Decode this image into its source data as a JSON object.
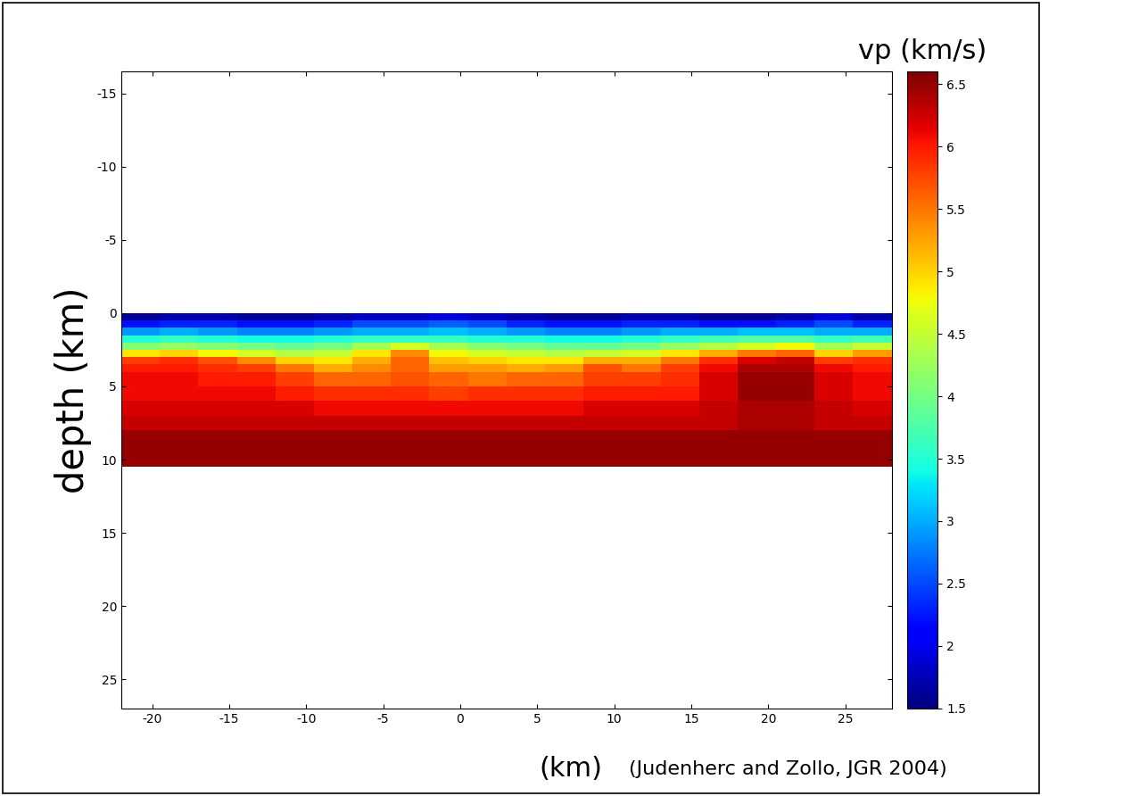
{
  "chart_data": {
    "type": "heatmap",
    "colorbar_label": "vp (km/s)",
    "x_label": "(km)",
    "y_label": "depth (km)",
    "source": "(Judenherc and Zollo, JGR 2004)",
    "xlim": [
      -22,
      28
    ],
    "ylim": [
      27,
      -16.5
    ],
    "xticks": [
      -20,
      -15,
      -10,
      -5,
      0,
      5,
      10,
      15,
      20,
      25
    ],
    "yticks": [
      -15,
      -10,
      -5,
      0,
      5,
      10,
      15,
      20,
      25
    ],
    "x_edges": [
      -22,
      -19.5,
      -17,
      -14.5,
      -12,
      -9.5,
      -7,
      -4.5,
      -2,
      0.5,
      3,
      5.5,
      8,
      10.5,
      13,
      15.5,
      18,
      20.5,
      23,
      25.5,
      28
    ],
    "y_edges": [
      0,
      0.5,
      1,
      1.5,
      2,
      2.5,
      3,
      3.5,
      4,
      5,
      6,
      7,
      8,
      9,
      10.5
    ],
    "cells": [
      [
        1.6,
        1.7,
        1.7,
        1.6,
        1.6,
        1.7,
        1.8,
        1.8,
        1.9,
        1.8,
        1.7,
        1.6,
        1.6,
        1.7,
        1.7,
        1.6,
        1.6,
        1.7,
        1.9,
        1.7
      ],
      [
        2.2,
        2.3,
        2.3,
        2.2,
        2.2,
        2.3,
        2.5,
        2.5,
        2.6,
        2.5,
        2.3,
        2.2,
        2.2,
        2.3,
        2.3,
        2.2,
        2.2,
        2.3,
        2.5,
        2.3
      ],
      [
        2.9,
        3.0,
        2.9,
        2.8,
        2.8,
        2.9,
        3.0,
        3.0,
        3.1,
        3.0,
        2.9,
        2.8,
        2.8,
        2.9,
        3.0,
        3.0,
        3.1,
        3.1,
        3.0,
        3.0
      ],
      [
        3.5,
        3.6,
        3.5,
        3.4,
        3.4,
        3.5,
        3.6,
        3.6,
        3.6,
        3.5,
        3.5,
        3.4,
        3.4,
        3.5,
        3.6,
        3.7,
        3.8,
        3.8,
        3.6,
        3.7
      ],
      [
        4.1,
        4.2,
        4.1,
        4.0,
        3.9,
        4.0,
        4.3,
        4.6,
        4.3,
        4.1,
        4.0,
        3.9,
        3.9,
        4.0,
        4.2,
        4.4,
        4.6,
        4.8,
        4.3,
        4.5
      ],
      [
        4.9,
        5.0,
        4.8,
        4.6,
        4.4,
        4.5,
        4.9,
        5.4,
        4.8,
        4.6,
        4.5,
        4.4,
        4.5,
        4.6,
        4.9,
        5.2,
        5.5,
        5.6,
        5.0,
        5.3
      ],
      [
        5.8,
        5.9,
        5.7,
        5.4,
        5.0,
        4.9,
        5.2,
        5.6,
        5.1,
        5.0,
        4.9,
        4.9,
        5.2,
        5.2,
        5.5,
        5.9,
        6.2,
        6.3,
        5.8,
        5.9
      ],
      [
        6.0,
        6.0,
        5.9,
        5.8,
        5.5,
        5.2,
        5.4,
        5.6,
        5.3,
        5.3,
        5.2,
        5.3,
        5.7,
        5.5,
        5.8,
        6.1,
        6.4,
        6.4,
        6.1,
        6.0
      ],
      [
        6.1,
        6.1,
        6.0,
        6.0,
        5.8,
        5.6,
        5.6,
        5.7,
        5.6,
        5.5,
        5.6,
        5.6,
        5.8,
        5.8,
        5.9,
        6.2,
        6.5,
        6.5,
        6.2,
        6.1
      ],
      [
        6.1,
        6.1,
        6.1,
        6.1,
        6.0,
        5.9,
        5.9,
        5.9,
        5.8,
        5.9,
        5.9,
        5.9,
        6.0,
        6.0,
        6.0,
        6.2,
        6.5,
        6.5,
        6.2,
        6.1
      ],
      [
        6.2,
        6.2,
        6.2,
        6.2,
        6.2,
        6.1,
        6.1,
        6.1,
        6.1,
        6.1,
        6.1,
        6.1,
        6.2,
        6.2,
        6.2,
        6.3,
        6.4,
        6.4,
        6.3,
        6.2
      ],
      [
        6.3,
        6.3,
        6.3,
        6.3,
        6.3,
        6.3,
        6.3,
        6.3,
        6.3,
        6.3,
        6.3,
        6.3,
        6.3,
        6.3,
        6.3,
        6.3,
        6.4,
        6.4,
        6.3,
        6.3
      ],
      [
        6.5,
        6.5,
        6.5,
        6.5,
        6.5,
        6.5,
        6.5,
        6.5,
        6.5,
        6.5,
        6.5,
        6.5,
        6.5,
        6.5,
        6.5,
        6.5,
        6.5,
        6.5,
        6.5,
        6.5
      ],
      [
        6.5,
        6.5,
        6.5,
        6.5,
        6.5,
        6.5,
        6.5,
        6.5,
        6.5,
        6.5,
        6.5,
        6.5,
        6.5,
        6.5,
        6.5,
        6.5,
        6.5,
        6.5,
        6.5,
        6.5
      ]
    ],
    "colorbar_range": [
      1.5,
      6.6
    ],
    "colorbar_ticks": [
      1.5,
      2,
      2.5,
      3,
      3.5,
      4,
      4.5,
      5,
      5.5,
      6,
      6.5
    ]
  }
}
